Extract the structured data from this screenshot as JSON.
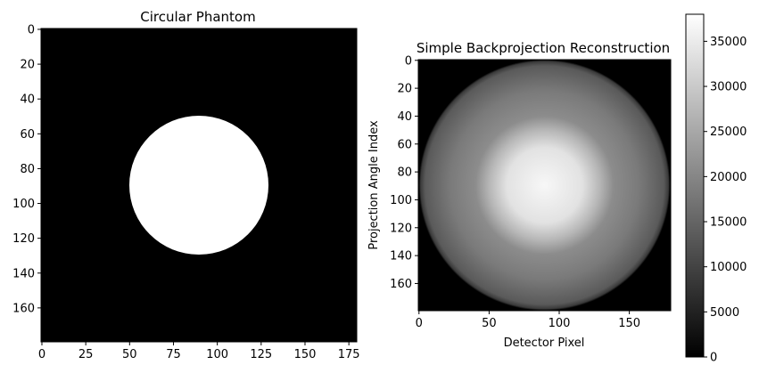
{
  "chart_data": [
    {
      "type": "heatmap",
      "title": "Circular Phantom",
      "xlabel": "",
      "ylabel": "",
      "image_size": [
        180,
        180
      ],
      "colormap": "gray",
      "description_of_values": "binary disc: value 1 inside circle, 0 outside",
      "circle": {
        "center_x": 90,
        "center_y": 90,
        "radius": 40,
        "inside_value": 1,
        "outside_value": 0
      },
      "xlim": [
        0,
        180
      ],
      "ylim": [
        180,
        0
      ],
      "xticks": [
        0,
        25,
        50,
        75,
        100,
        125,
        150,
        175
      ],
      "yticks": [
        0,
        20,
        40,
        60,
        80,
        100,
        120,
        140,
        160
      ],
      "grid": false
    },
    {
      "type": "heatmap",
      "title": "Simple Backprojection Reconstruction",
      "xlabel": "Detector Pixel",
      "ylabel": "Projection Angle Index",
      "image_size": [
        180,
        180
      ],
      "colormap": "gray",
      "profile": {
        "center_x": 90,
        "center_y": 90,
        "peak_value": 38000,
        "plateau_radius": 40,
        "outer_radius": 90,
        "edge_value": 14000
      },
      "xlim": [
        0,
        180
      ],
      "ylim": [
        180,
        0
      ],
      "xticks": [
        0,
        50,
        100,
        150
      ],
      "yticks": [
        0,
        20,
        40,
        60,
        80,
        100,
        120,
        140,
        160
      ],
      "grid": false,
      "colorbar": {
        "min": 0,
        "max": 38000,
        "ticks": [
          0,
          5000,
          10000,
          15000,
          20000,
          25000,
          30000,
          35000
        ]
      }
    }
  ]
}
